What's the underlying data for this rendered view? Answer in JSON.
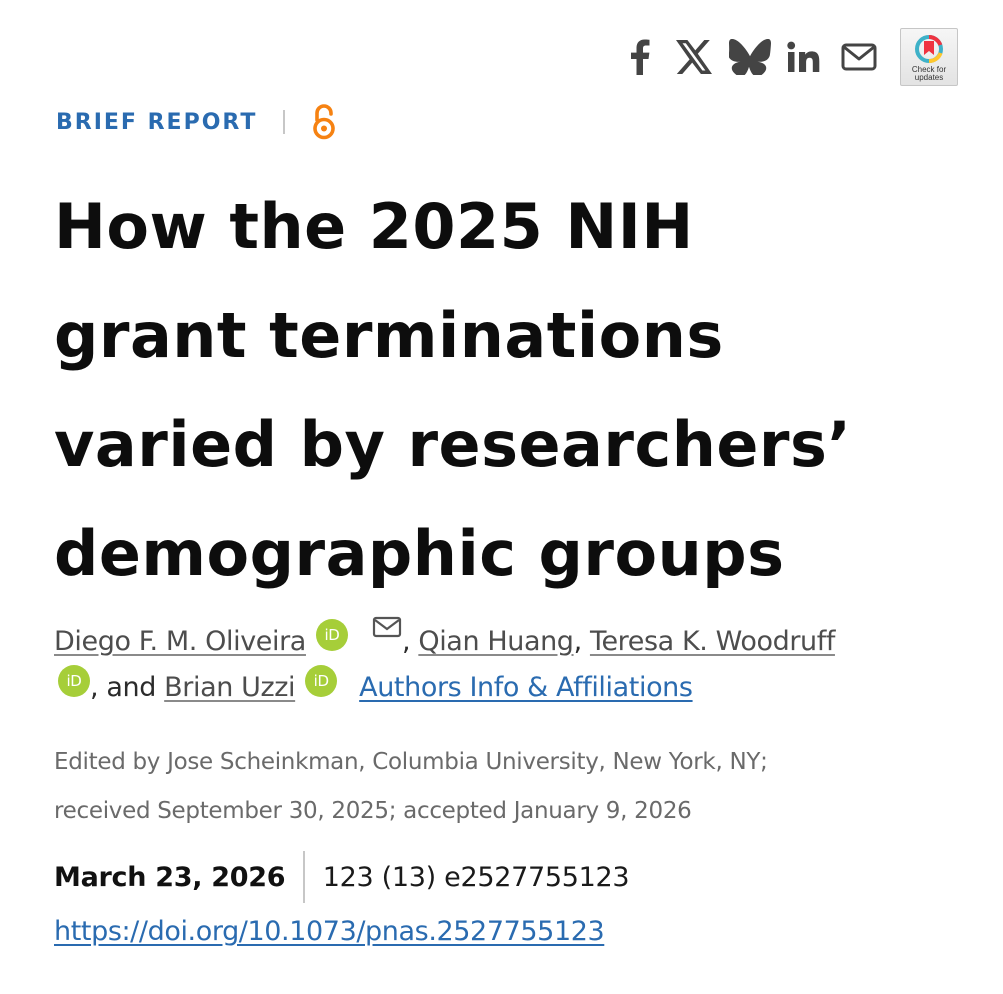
{
  "share": {
    "icons": [
      "facebook-icon",
      "x-icon",
      "bluesky-icon",
      "linkedin-icon",
      "email-icon"
    ],
    "check_updates_label_1": "Check for",
    "check_updates_label_2": "updates"
  },
  "article": {
    "type": "BRIEF REPORT",
    "access_icon": "open-access-icon",
    "title_lines": [
      "How the 2025 NIH",
      "grant terminations",
      "varied by researchers’",
      "demographic groups"
    ],
    "authors": [
      {
        "name": "Diego F. M. Oliveira",
        "orcid": true,
        "email": true
      },
      {
        "name": "Qian Huang",
        "orcid": false,
        "email": false
      },
      {
        "name": "Teresa K. Woodruff",
        "orcid": true,
        "email": false
      },
      {
        "name": "Brian Uzzi",
        "orcid": true,
        "email": false
      }
    ],
    "orcid_label": "iD",
    "separator_comma": ",",
    "separator_and": ", and",
    "affiliations_link": "Authors Info & Affiliations",
    "edited_line_1": "Edited by Jose Scheinkman, Columbia University, New York, NY;",
    "edited_line_2": "received September 30, 2025; accepted January 9, 2026",
    "pub_date": "March 23, 2026",
    "volume_issue": "123 (13) e2527755123",
    "doi": "https://doi.org/10.1073/pnas.2527755123"
  },
  "colors": {
    "link_blue": "#2a6bb0",
    "orcid_green": "#a6ce39",
    "open_access_orange": "#f68212",
    "title_black": "#0d0d0d",
    "muted_gray": "#6a6a6a"
  }
}
